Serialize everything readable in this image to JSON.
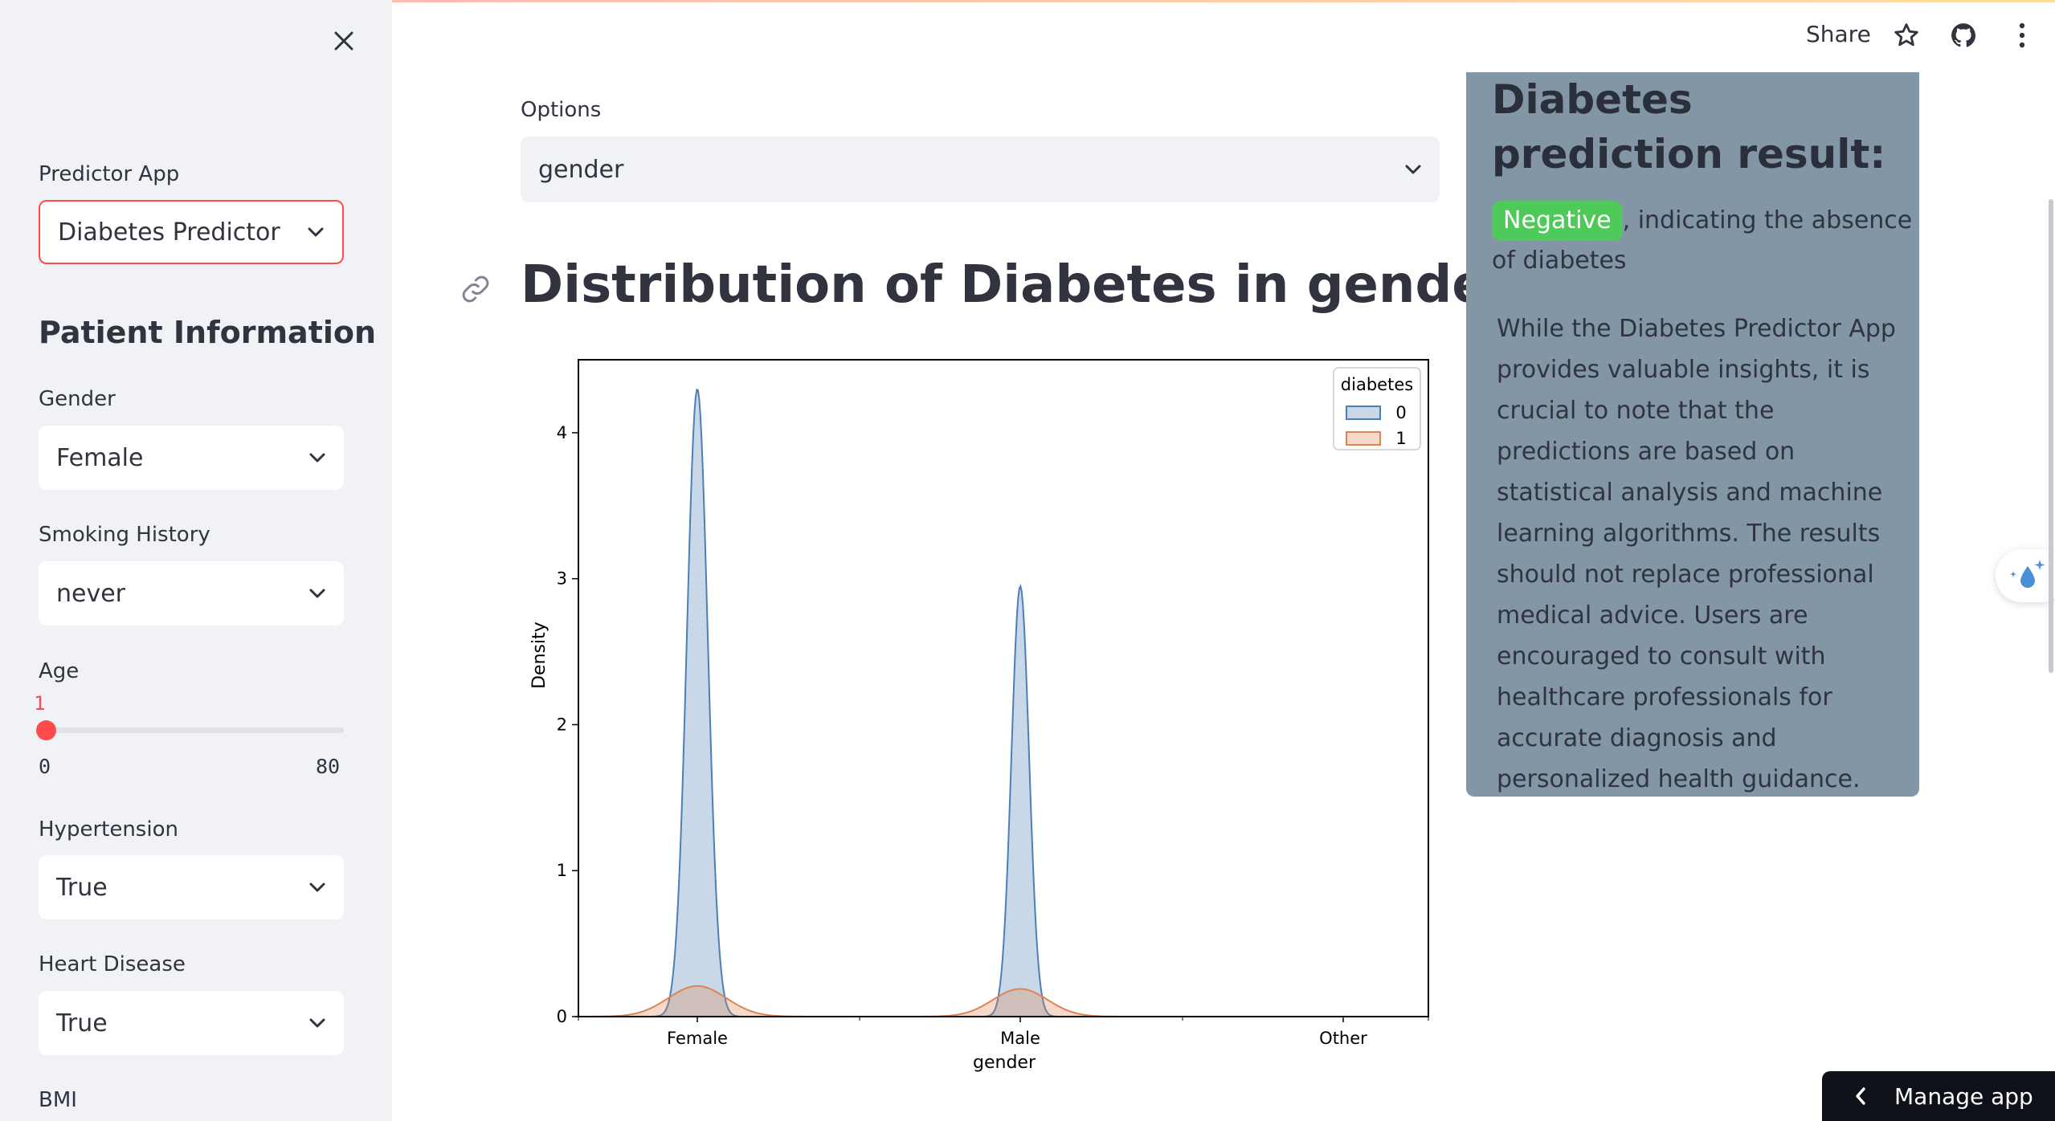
{
  "sidebar": {
    "app_label": "Predictor App",
    "app_value": "Diabetes Predictor",
    "section_title": "Patient Information",
    "gender_label": "Gender",
    "gender_value": "Female",
    "smoking_label": "Smoking History",
    "smoking_value": "never",
    "age_label": "Age",
    "age_value": "1",
    "age_min": "0",
    "age_max": "80",
    "age_fraction": 0.0125,
    "hypertension_label": "Hypertension",
    "hypertension_value": "True",
    "heart_label": "Heart Disease",
    "heart_value": "True",
    "bmi_label": "BMI"
  },
  "header": {
    "share_label": "Share"
  },
  "main": {
    "options_label": "Options",
    "options_value": "gender",
    "heading": "Distribution of Diabetes in gender"
  },
  "result": {
    "title": "Diabetes prediction result:",
    "badge": "Negative",
    "text": ", indicating the absence of diabetes",
    "note": "While the Diabetes Predictor App provides valuable insights, it is crucial to note that the predictions are based on statistical analysis and machine learning algorithms. The results should not replace professional medical advice. Users are encouraged to consult with healthcare professionals for accurate diagnosis and personalized health guidance."
  },
  "manage_app_label": "Manage app",
  "colors": {
    "accent": "#ff4b4b",
    "badge": "#4fc95a",
    "card": "#8296a6",
    "series0": "#4c7fb5",
    "series1": "#dd8452"
  },
  "chart_data": {
    "type": "area",
    "xlabel": "gender",
    "ylabel": "Density",
    "categories": [
      "Female",
      "Male",
      "Other"
    ],
    "ylim": [
      0,
      4.5
    ],
    "yticks": [
      0,
      1,
      2,
      3,
      4
    ],
    "legend_title": "diabetes",
    "legend_position": "top-right",
    "series": [
      {
        "name": "0",
        "peaks": [
          4.3,
          2.95,
          0
        ]
      },
      {
        "name": "1",
        "peaks": [
          0.21,
          0.19,
          0
        ]
      }
    ]
  }
}
